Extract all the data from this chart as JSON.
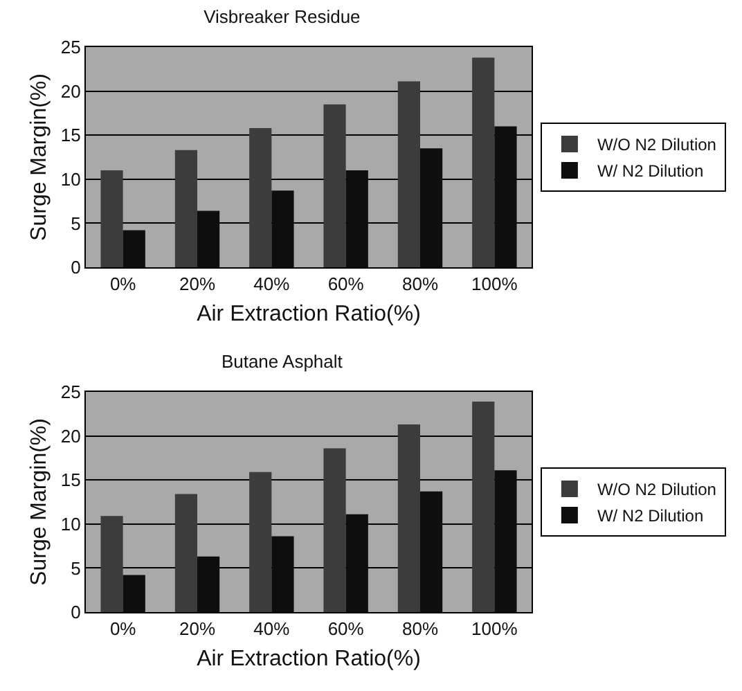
{
  "chart_data": [
    {
      "type": "bar",
      "title": "Visbreaker Residue",
      "xlabel": "Air Extraction Ratio(%)",
      "ylabel": "Surge Margin(%)",
      "categories": [
        "0%",
        "20%",
        "40%",
        "60%",
        "80%",
        "100%"
      ],
      "series": [
        {
          "name": "W/O N2 Dilution",
          "color": "#3c3c3c",
          "values": [
            11,
            13.3,
            15.8,
            18.5,
            21.1,
            23.8
          ]
        },
        {
          "name": "W/ N2 Dilution",
          "color": "#0e0e0e",
          "values": [
            4.2,
            6.4,
            8.7,
            11,
            13.5,
            16
          ]
        }
      ],
      "ylim": [
        0,
        25
      ],
      "yticks": [
        0,
        5,
        10,
        15,
        20,
        25
      ],
      "grid": "y",
      "legend": "right"
    },
    {
      "type": "bar",
      "title": "Butane Asphalt",
      "xlabel": "Air Extraction Ratio(%)",
      "ylabel": "Surge Margin(%)",
      "categories": [
        "0%",
        "20%",
        "40%",
        "60%",
        "80%",
        "100%"
      ],
      "series": [
        {
          "name": "W/O N2 Dilution",
          "color": "#3c3c3c",
          "values": [
            10.9,
            13.4,
            15.9,
            18.6,
            21.3,
            23.9
          ]
        },
        {
          "name": "W/ N2 Dilution",
          "color": "#0e0e0e",
          "values": [
            4.2,
            6.3,
            8.6,
            11.1,
            13.7,
            16.1
          ]
        }
      ],
      "ylim": [
        0,
        25
      ],
      "yticks": [
        0,
        5,
        10,
        15,
        20,
        25
      ],
      "grid": "y",
      "legend": "right"
    }
  ]
}
